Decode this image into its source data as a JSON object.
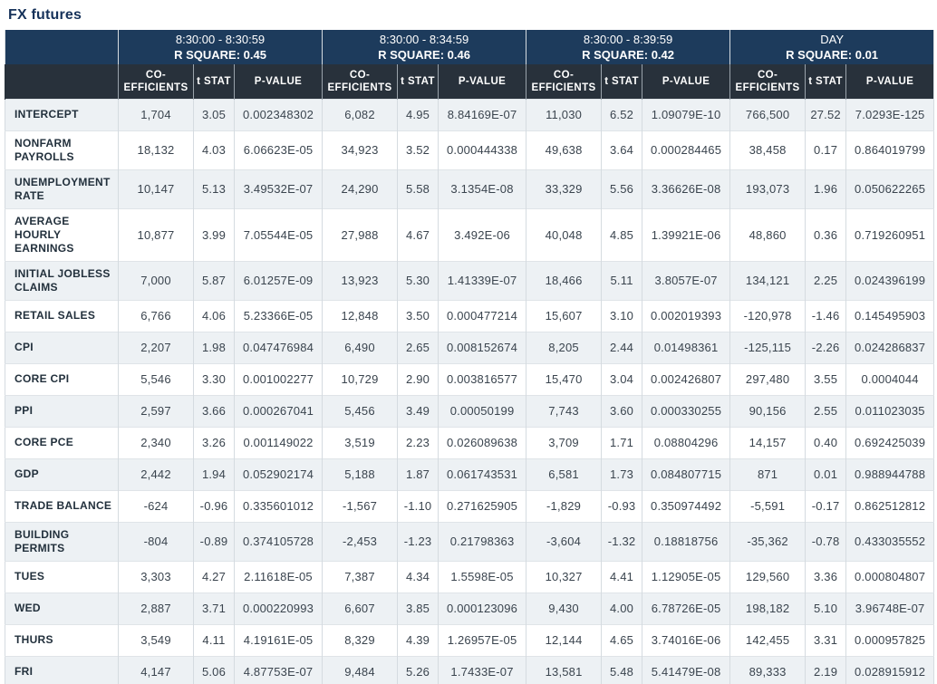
{
  "title": "FX futures",
  "colors": {
    "navy_band": "#1d3b5c",
    "subheader_band": "#28313b",
    "row_stripe": "#edf1f4",
    "title_text": "#16325a"
  },
  "table": {
    "column_groups": [
      {
        "period": "8:30:00 - 8:30:59",
        "r_square": "R SQUARE: 0.45"
      },
      {
        "period": "8:30:00 - 8:34:59",
        "r_square": "R SQUARE: 0.46"
      },
      {
        "period": "8:30:00 - 8:39:59",
        "r_square": "R SQUARE: 0.42"
      },
      {
        "period": "DAY",
        "r_square": "R SQUARE: 0.01"
      }
    ],
    "sub_columns": [
      "CO-EFFICIENTS",
      "t STAT",
      "P-VALUE"
    ],
    "rows": [
      {
        "label": "INTERCEPT",
        "cells": [
          "1,704",
          "3.05",
          "0.002348302",
          "6,082",
          "4.95",
          "8.84169E-07",
          "11,030",
          "6.52",
          "1.09079E-10",
          "766,500",
          "27.52",
          "7.0293E-125"
        ]
      },
      {
        "label": "NONFARM PAYROLLS",
        "cells": [
          "18,132",
          "4.03",
          "6.06623E-05",
          "34,923",
          "3.52",
          "0.000444338",
          "49,638",
          "3.64",
          "0.000284465",
          "38,458",
          "0.17",
          "0.864019799"
        ]
      },
      {
        "label": "UNEMPLOYMENT RATE",
        "cells": [
          "10,147",
          "5.13",
          "3.49532E-07",
          "24,290",
          "5.58",
          "3.1354E-08",
          "33,329",
          "5.56",
          "3.36626E-08",
          "193,073",
          "1.96",
          "0.050622265"
        ]
      },
      {
        "label": "AVERAGE HOURLY EARNINGS",
        "cells": [
          "10,877",
          "3.99",
          "7.05544E-05",
          "27,988",
          "4.67",
          "3.492E-06",
          "40,048",
          "4.85",
          "1.39921E-06",
          "48,860",
          "0.36",
          "0.719260951"
        ]
      },
      {
        "label": "INITIAL JOBLESS CLAIMS",
        "cells": [
          "7,000",
          "5.87",
          "6.01257E-09",
          "13,923",
          "5.30",
          "1.41339E-07",
          "18,466",
          "5.11",
          "3.8057E-07",
          "134,121",
          "2.25",
          "0.024396199"
        ]
      },
      {
        "label": "RETAIL SALES",
        "cells": [
          "6,766",
          "4.06",
          "5.23366E-05",
          "12,848",
          "3.50",
          "0.000477214",
          "15,607",
          "3.10",
          "0.002019393",
          "-120,978",
          "-1.46",
          "0.145495903"
        ]
      },
      {
        "label": "CPI",
        "cells": [
          "2,207",
          "1.98",
          "0.047476984",
          "6,490",
          "2.65",
          "0.008152674",
          "8,205",
          "2.44",
          "0.01498361",
          "-125,115",
          "-2.26",
          "0.024286837"
        ]
      },
      {
        "label": "CORE CPI",
        "cells": [
          "5,546",
          "3.30",
          "0.001002277",
          "10,729",
          "2.90",
          "0.003816577",
          "15,470",
          "3.04",
          "0.002426807",
          "297,480",
          "3.55",
          "0.0004044"
        ]
      },
      {
        "label": "PPI",
        "cells": [
          "2,597",
          "3.66",
          "0.000267041",
          "5,456",
          "3.49",
          "0.00050199",
          "7,743",
          "3.60",
          "0.000330255",
          "90,156",
          "2.55",
          "0.011023035"
        ]
      },
      {
        "label": "CORE PCE",
        "cells": [
          "2,340",
          "3.26",
          "0.001149022",
          "3,519",
          "2.23",
          "0.026089638",
          "3,709",
          "1.71",
          "0.08804296",
          "14,157",
          "0.40",
          "0.692425039"
        ]
      },
      {
        "label": "GDP",
        "cells": [
          "2,442",
          "1.94",
          "0.052902174",
          "5,188",
          "1.87",
          "0.061743531",
          "6,581",
          "1.73",
          "0.084807715",
          "871",
          "0.01",
          "0.988944788"
        ]
      },
      {
        "label": "TRADE BALANCE",
        "cells": [
          "-624",
          "-0.96",
          "0.335601012",
          "-1,567",
          "-1.10",
          "0.271625905",
          "-1,829",
          "-0.93",
          "0.350974492",
          "-5,591",
          "-0.17",
          "0.862512812"
        ]
      },
      {
        "label": "BUILDING PERMITS",
        "cells": [
          "-804",
          "-0.89",
          "0.374105728",
          "-2,453",
          "-1.23",
          "0.21798363",
          "-3,604",
          "-1.32",
          "0.18818756",
          "-35,362",
          "-0.78",
          "0.433035552"
        ]
      },
      {
        "label": "TUES",
        "cells": [
          "3,303",
          "4.27",
          "2.11618E-05",
          "7,387",
          "4.34",
          "1.5598E-05",
          "10,327",
          "4.41",
          "1.12905E-05",
          "129,560",
          "3.36",
          "0.000804807"
        ]
      },
      {
        "label": "WED",
        "cells": [
          "2,887",
          "3.71",
          "0.000220993",
          "6,607",
          "3.85",
          "0.000123096",
          "9,430",
          "4.00",
          "6.78726E-05",
          "198,182",
          "5.10",
          "3.96748E-07"
        ]
      },
      {
        "label": "THURS",
        "cells": [
          "3,549",
          "4.11",
          "4.19161E-05",
          "8,329",
          "4.39",
          "1.26957E-05",
          "12,144",
          "4.65",
          "3.74016E-06",
          "142,455",
          "3.31",
          "0.000957825"
        ]
      },
      {
        "label": "FRI",
        "cells": [
          "4,147",
          "5.06",
          "4.87753E-07",
          "9,484",
          "5.26",
          "1.7433E-07",
          "13,581",
          "5.48",
          "5.41479E-08",
          "89,333",
          "2.19",
          "0.028915912"
        ]
      }
    ]
  }
}
